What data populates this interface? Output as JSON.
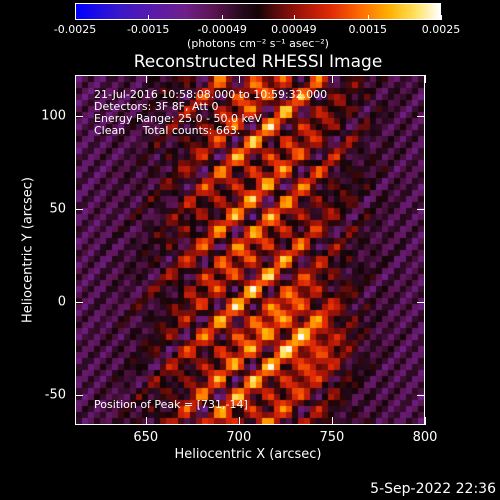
{
  "colorbar": {
    "ticks": [
      "-0.0025",
      "-0.0015",
      "-0.00049",
      "0.00049",
      "0.0015",
      "0.0025"
    ],
    "units_label": "(photons cm⁻² s⁻¹ asec⁻²)"
  },
  "plot": {
    "title": "Reconstructed RHESSI Image",
    "xlabel": "Heliocentric X (arcsec)",
    "ylabel": "Heliocentric Y (arcsec)",
    "annotations": {
      "time_range": "21-Jul-2016 10:58:08.000 to 10:59:32.000",
      "detectors": "Detectors: 3F 8F, Att 0",
      "energy": "Energy Range: 25.0 - 50.0 keV",
      "method": "Clean     Total counts: 663.",
      "peak": "Position of Peak = [731,-14]"
    }
  },
  "footer": {
    "timestamp": "5-Sep-2022 22:36"
  },
  "chart_data": {
    "type": "heatmap",
    "title": "Reconstructed RHESSI Image",
    "xlabel": "Heliocentric X (arcsec)",
    "ylabel": "Heliocentric Y (arcsec)",
    "xlim": [
      612,
      800
    ],
    "ylim": [
      -66,
      122
    ],
    "xticks": [
      650,
      700,
      750,
      800
    ],
    "yticks": [
      -50,
      0,
      50,
      100
    ],
    "colorbar": {
      "range": [
        -0.0025,
        0.0025
      ],
      "ticks": [
        -0.0025,
        -0.0015,
        -0.00049,
        0.00049,
        0.0015,
        0.0025
      ],
      "units": "photons cm^-2 s^-1 asec^-2"
    },
    "peak_position": [
      731,
      -14
    ],
    "total_counts": 663,
    "colors": {
      "low": "#0000ff",
      "mid_low": "#5c1aa8",
      "zero": "#120406",
      "mid_high": "#e02a06",
      "high": "#ffffff"
    }
  }
}
